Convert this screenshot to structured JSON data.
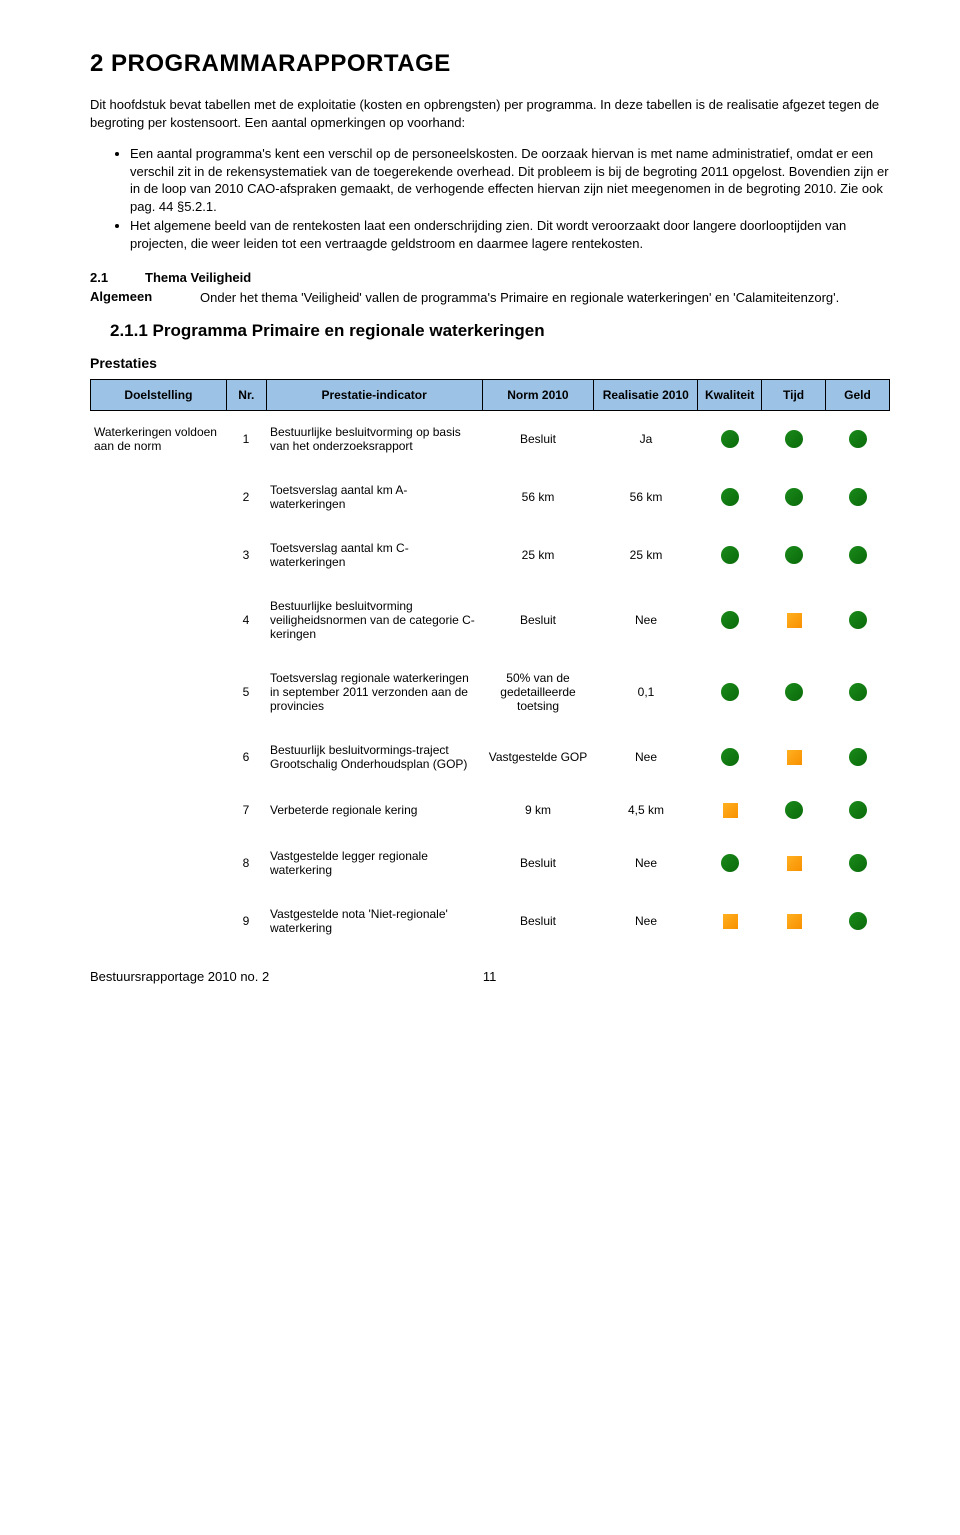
{
  "title": "2   PROGRAMMARAPPORTAGE",
  "intro": "Dit hoofdstuk bevat tabellen met de exploitatie (kosten en opbrengsten) per programma. In deze tabellen is de realisatie afgezet tegen de begroting per kostensoort. Een aantal opmerkingen op voorhand:",
  "bullets": [
    "Een aantal programma's kent een verschil op de personeelskosten. De oorzaak hiervan is met name administratief, omdat er een verschil zit in de rekensystematiek van de toegerekende overhead. Dit probleem is bij de begroting 2011 opgelost. Bovendien zijn er in de loop van 2010 CAO-afspraken gemaakt, de verhogende effecten hiervan zijn niet meegenomen in de begroting 2010. Zie ook pag. 44 §5.2.1.",
    "Het algemene beeld van de rentekosten laat een onderschrijding zien. Dit wordt veroorzaakt door langere doorlooptijden van projecten, die weer leiden tot een vertraagde geldstroom en daarmee lagere rentekosten."
  ],
  "section": {
    "num": "2.1",
    "label": "Thema Veiligheid"
  },
  "algemeen": {
    "label": "Algemeen",
    "text": "Onder het thema 'Veiligheid' vallen de programma's Primaire en regionale waterkeringen' en 'Calamiteitenzorg'."
  },
  "subtitle": "2.1.1 Programma Primaire en regionale waterkeringen",
  "prestaties_label": "Prestaties",
  "headers": {
    "doel": "Doelstelling",
    "nr": "Nr.",
    "ind": "Prestatie-indicator",
    "norm": "Norm 2010",
    "real": "Realisatie 2010",
    "kwal": "Kwaliteit",
    "tijd": "Tijd",
    "geld": "Geld"
  },
  "doel_text": "Waterkeringen voldoen aan de norm",
  "rows": [
    {
      "nr": "1",
      "ind": "Bestuurlijke besluitvorming op basis van het onderzoeksrapport",
      "norm": "Besluit",
      "real": "Ja",
      "k": "green",
      "t": "green",
      "g": "green"
    },
    {
      "nr": "2",
      "ind": "Toetsverslag aantal km A-waterkeringen",
      "norm": "56 km",
      "real": "56 km",
      "k": "green",
      "t": "green",
      "g": "green"
    },
    {
      "nr": "3",
      "ind": "Toetsverslag aantal km C-waterkeringen",
      "norm": "25 km",
      "real": "25 km",
      "k": "green",
      "t": "green",
      "g": "green"
    },
    {
      "nr": "4",
      "ind": "Bestuurlijke besluitvorming veiligheidsnormen van de categorie C-keringen",
      "norm": "Besluit",
      "real": "Nee",
      "k": "green",
      "t": "orange",
      "g": "green"
    },
    {
      "nr": "5",
      "ind": "Toetsverslag regionale waterkeringen in september 2011 verzonden aan de provincies",
      "norm": "50% van de gedetailleerde toetsing",
      "real": "0,1",
      "k": "green",
      "t": "green",
      "g": "green"
    },
    {
      "nr": "6",
      "ind": "Bestuurlijk besluitvormings-traject Grootschalig Onderhoudsplan (GOP)",
      "norm": "Vastgestelde GOP",
      "real": "Nee",
      "k": "green",
      "t": "orange",
      "g": "green"
    },
    {
      "nr": "7",
      "ind": "Verbeterde regionale kering",
      "norm": "9 km",
      "real": "4,5 km",
      "k": "orange",
      "t": "green",
      "g": "green"
    },
    {
      "nr": "8",
      "ind": "Vastgestelde legger regionale waterkering",
      "norm": "Besluit",
      "real": "Nee",
      "k": "green",
      "t": "orange",
      "g": "green"
    },
    {
      "nr": "9",
      "ind": "Vastgestelde nota 'Niet-regionale' waterkering",
      "norm": "Besluit",
      "real": "Nee",
      "k": "orange",
      "t": "orange",
      "g": "green"
    }
  ],
  "footer": {
    "left": "Bestuursrapportage 2010 no. 2",
    "page": "11"
  },
  "colors": {
    "green": "#0a7a0a",
    "orange": "#f89000",
    "header_bg": "#9cc3e6"
  }
}
